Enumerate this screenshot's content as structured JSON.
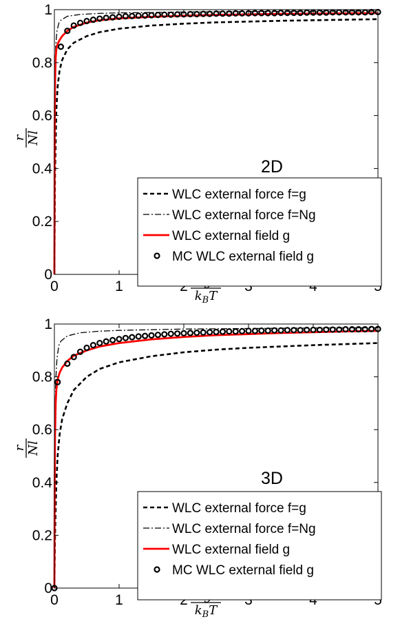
{
  "chart_data": [
    {
      "type": "line",
      "panel_label": "2D",
      "xlabel": {
        "numerator": "lg",
        "denominator": "k",
        "denominator_sub": "B",
        "denominator_tail": "T"
      },
      "ylabel": {
        "numerator": "r",
        "denominator": "Nl"
      },
      "xlim": [
        0,
        5
      ],
      "ylim": [
        0,
        1
      ],
      "xticks": [
        "0",
        "1",
        "2",
        "3",
        "4",
        "5"
      ],
      "yticks": [
        "0",
        "0.2",
        "0.4",
        "0.6",
        "0.8",
        "1"
      ],
      "legend_position": "bottom-right",
      "series": [
        {
          "name": "WLC external force f=g",
          "style": "dashed",
          "color": "#000000",
          "x": [
            0,
            0.01,
            0.03,
            0.05,
            0.08,
            0.12,
            0.2,
            0.3,
            0.5,
            0.7,
            1.0,
            1.5,
            2.0,
            2.5,
            3.0,
            3.5,
            4.0,
            4.5,
            5.0
          ],
          "y": [
            0,
            0.38,
            0.62,
            0.71,
            0.77,
            0.81,
            0.85,
            0.875,
            0.9,
            0.915,
            0.928,
            0.94,
            0.947,
            0.952,
            0.955,
            0.958,
            0.96,
            0.962,
            0.964
          ]
        },
        {
          "name": "WLC external force f=Ng",
          "style": "dashdot",
          "color": "#000000",
          "x": [
            0,
            0.005,
            0.01,
            0.02,
            0.04,
            0.07,
            0.1,
            0.2,
            0.4,
            0.7,
            1.0,
            2.0,
            3.0,
            4.0,
            5.0
          ],
          "y": [
            0,
            0.6,
            0.75,
            0.86,
            0.92,
            0.95,
            0.96,
            0.975,
            0.982,
            0.986,
            0.988,
            0.991,
            0.993,
            0.994,
            0.995
          ]
        },
        {
          "name": "WLC external field g",
          "style": "solid",
          "color": "#ff0000",
          "x": [
            0,
            0.005,
            0.01,
            0.02,
            0.03,
            0.05,
            0.08,
            0.12,
            0.2,
            0.3,
            0.5,
            0.7,
            1.0,
            1.5,
            2.0,
            2.5,
            3.0,
            3.5,
            4.0,
            4.5,
            5.0
          ],
          "y": [
            0,
            0.55,
            0.72,
            0.82,
            0.85,
            0.87,
            0.885,
            0.9,
            0.92,
            0.935,
            0.951,
            0.96,
            0.967,
            0.973,
            0.977,
            0.98,
            0.982,
            0.984,
            0.985,
            0.986,
            0.987
          ]
        },
        {
          "name": "MC WLC external field g",
          "style": "markers",
          "color": "#000000",
          "x": [
            0.1,
            0.2,
            0.3,
            0.4,
            0.5,
            0.6,
            0.7,
            0.8,
            0.9,
            1.0,
            1.1,
            1.2,
            1.3,
            1.4,
            1.5,
            1.6,
            1.7,
            1.8,
            1.9,
            2.0,
            2.1,
            2.2,
            2.3,
            2.4,
            2.5,
            2.6,
            2.7,
            2.8,
            2.9,
            3.0,
            3.1,
            3.2,
            3.3,
            3.4,
            3.5,
            3.6,
            3.7,
            3.8,
            3.9,
            4.0,
            4.1,
            4.2,
            4.3,
            4.4,
            4.5,
            4.6,
            4.7,
            4.8,
            4.9,
            5.0
          ],
          "y": [
            0.86,
            0.92,
            0.94,
            0.95,
            0.957,
            0.962,
            0.966,
            0.969,
            0.971,
            0.973,
            0.975,
            0.976,
            0.977,
            0.978,
            0.979,
            0.98,
            0.981,
            0.981,
            0.982,
            0.982,
            0.983,
            0.983,
            0.984,
            0.984,
            0.985,
            0.985,
            0.985,
            0.986,
            0.986,
            0.986,
            0.987,
            0.987,
            0.987,
            0.987,
            0.988,
            0.988,
            0.988,
            0.988,
            0.989,
            0.989,
            0.989,
            0.989,
            0.99,
            0.99,
            0.99,
            0.99,
            0.99,
            0.99,
            0.991,
            0.991
          ]
        }
      ]
    },
    {
      "type": "line",
      "panel_label": "3D",
      "xlabel": {
        "numerator": "lg",
        "denominator": "k",
        "denominator_sub": "B",
        "denominator_tail": "T"
      },
      "ylabel": {
        "numerator": "r",
        "denominator": "Nl"
      },
      "xlim": [
        0,
        5
      ],
      "ylim": [
        0,
        1
      ],
      "xticks": [
        "0",
        "1",
        "2",
        "3",
        "4",
        "5"
      ],
      "yticks": [
        "0",
        "0.2",
        "0.4",
        "0.6",
        "0.8",
        "1"
      ],
      "legend_position": "bottom-right",
      "series": [
        {
          "name": "WLC external force f=g",
          "style": "dashed",
          "color": "#000000",
          "x": [
            0,
            0.01,
            0.03,
            0.05,
            0.08,
            0.12,
            0.2,
            0.3,
            0.5,
            0.7,
            1.0,
            1.5,
            2.0,
            2.5,
            3.0,
            3.5,
            4.0,
            4.5,
            5.0
          ],
          "y": [
            0,
            0.2,
            0.4,
            0.5,
            0.58,
            0.64,
            0.7,
            0.75,
            0.8,
            0.83,
            0.855,
            0.878,
            0.893,
            0.903,
            0.91,
            0.915,
            0.92,
            0.924,
            0.928
          ]
        },
        {
          "name": "WLC external force f=Ng",
          "style": "dashdot",
          "color": "#000000",
          "x": [
            0,
            0.005,
            0.01,
            0.02,
            0.04,
            0.07,
            0.1,
            0.2,
            0.4,
            0.7,
            1.0,
            2.0,
            3.0,
            4.0,
            5.0
          ],
          "y": [
            0,
            0.5,
            0.65,
            0.78,
            0.87,
            0.92,
            0.935,
            0.955,
            0.967,
            0.973,
            0.976,
            0.981,
            0.983,
            0.985,
            0.986
          ]
        },
        {
          "name": "WLC external field g",
          "style": "solid",
          "color": "#ff0000",
          "x": [
            0,
            0.005,
            0.01,
            0.02,
            0.03,
            0.05,
            0.08,
            0.12,
            0.2,
            0.3,
            0.5,
            0.7,
            1.0,
            1.5,
            2.0,
            2.5,
            3.0,
            3.5,
            4.0,
            4.5,
            5.0
          ],
          "y": [
            0,
            0.4,
            0.58,
            0.7,
            0.75,
            0.79,
            0.815,
            0.835,
            0.86,
            0.88,
            0.9,
            0.915,
            0.928,
            0.942,
            0.951,
            0.958,
            0.962,
            0.966,
            0.969,
            0.972,
            0.974
          ]
        },
        {
          "name": "MC WLC external field g",
          "style": "markers",
          "color": "#000000",
          "x": [
            0,
            0.05,
            0.2,
            0.3,
            0.4,
            0.5,
            0.6,
            0.7,
            0.8,
            0.9,
            1.0,
            1.1,
            1.2,
            1.3,
            1.4,
            1.5,
            1.6,
            1.7,
            1.8,
            1.9,
            2.0,
            2.1,
            2.2,
            2.3,
            2.4,
            2.5,
            2.6,
            2.7,
            2.8,
            2.9,
            3.0,
            3.1,
            3.2,
            3.3,
            3.4,
            3.5,
            3.6,
            3.7,
            3.8,
            3.9,
            4.0,
            4.1,
            4.2,
            4.3,
            4.4,
            4.5,
            4.6,
            4.7,
            4.8,
            4.9,
            5.0
          ],
          "y": [
            0,
            0.78,
            0.85,
            0.875,
            0.895,
            0.91,
            0.92,
            0.928,
            0.934,
            0.939,
            0.943,
            0.947,
            0.95,
            0.953,
            0.955,
            0.957,
            0.959,
            0.961,
            0.963,
            0.964,
            0.965,
            0.966,
            0.967,
            0.968,
            0.969,
            0.97,
            0.971,
            0.972,
            0.972,
            0.973,
            0.974,
            0.974,
            0.975,
            0.975,
            0.976,
            0.976,
            0.977,
            0.977,
            0.977,
            0.978,
            0.978,
            0.978,
            0.979,
            0.979,
            0.979,
            0.98,
            0.98,
            0.98,
            0.98,
            0.981,
            0.981
          ]
        }
      ]
    }
  ]
}
